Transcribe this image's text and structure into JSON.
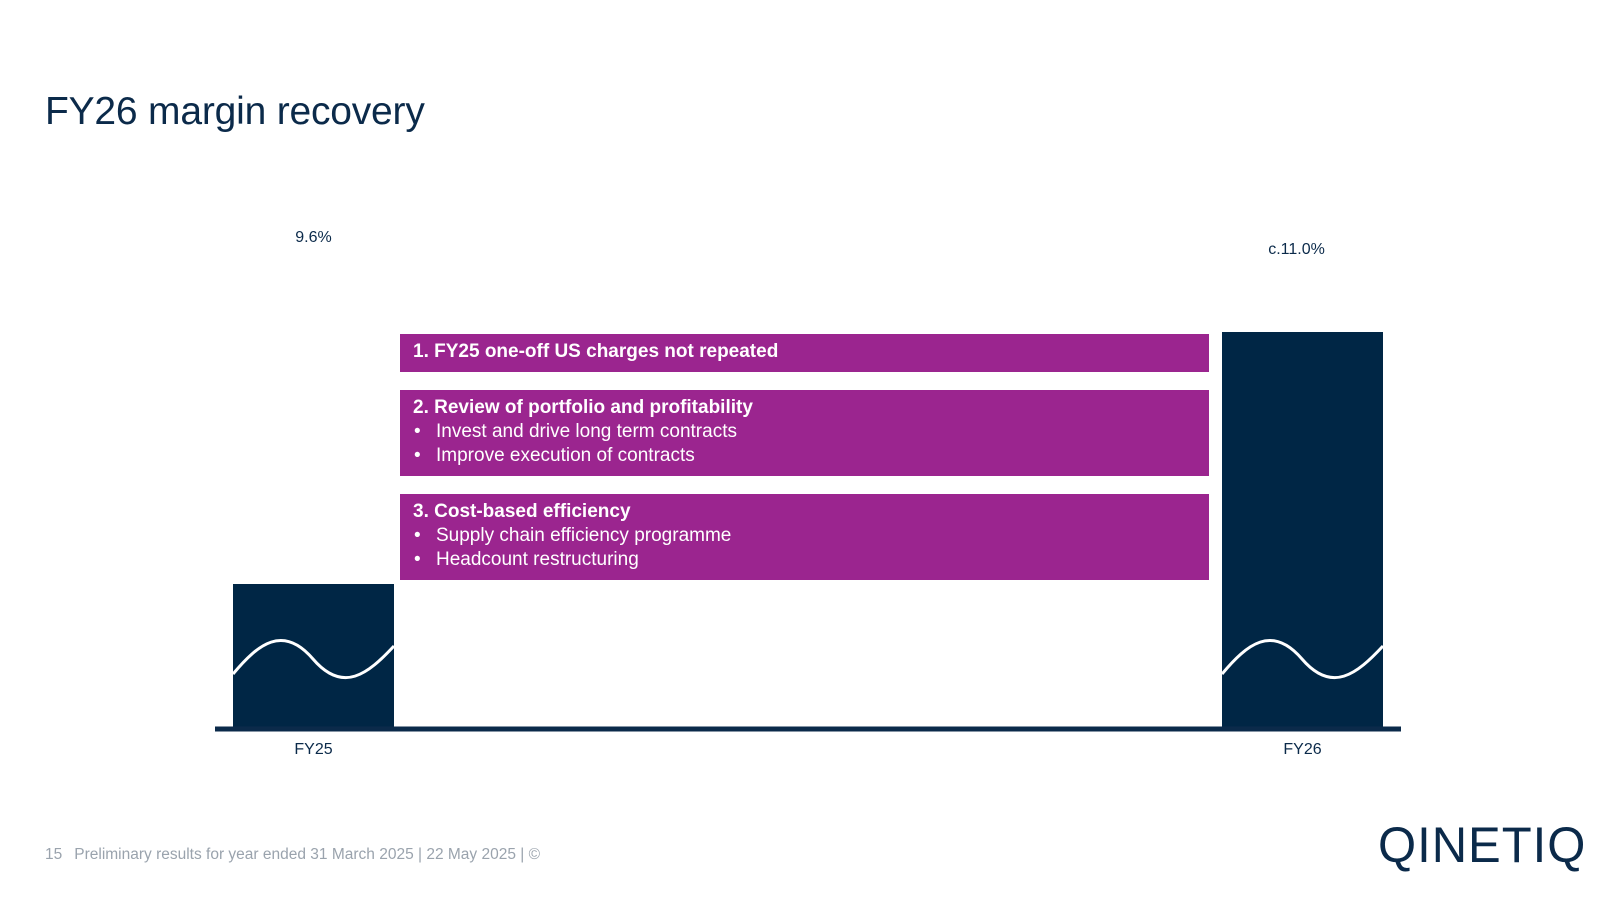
{
  "page": {
    "title": "FY26 margin recovery"
  },
  "chart_data": {
    "type": "bar",
    "categories": [
      "FY25",
      "FY26"
    ],
    "values": [
      9.6,
      11.0
    ],
    "data_labels": [
      "9.6%",
      "c.11.0%"
    ],
    "title": "",
    "xlabel": "",
    "ylabel": "",
    "colors": {
      "bar": "#002645",
      "axis": "#0b2a4a",
      "accent": "#9b258f"
    }
  },
  "drivers": [
    {
      "heading": "1. FY25 one-off US charges not repeated",
      "bullets": []
    },
    {
      "heading": "2. Review of portfolio and profitability",
      "bullets": [
        "Invest and drive long term contracts",
        "Improve execution of contracts"
      ]
    },
    {
      "heading": "3. Cost-based efficiency",
      "bullets": [
        "Supply chain efficiency programme",
        "Headcount restructuring"
      ]
    }
  ],
  "footer": {
    "page_number": "15",
    "text": "Preliminary results for year ended 31 March 2025 | 22 May 2025 | ©"
  },
  "logo": {
    "text": "QINETIQ"
  }
}
